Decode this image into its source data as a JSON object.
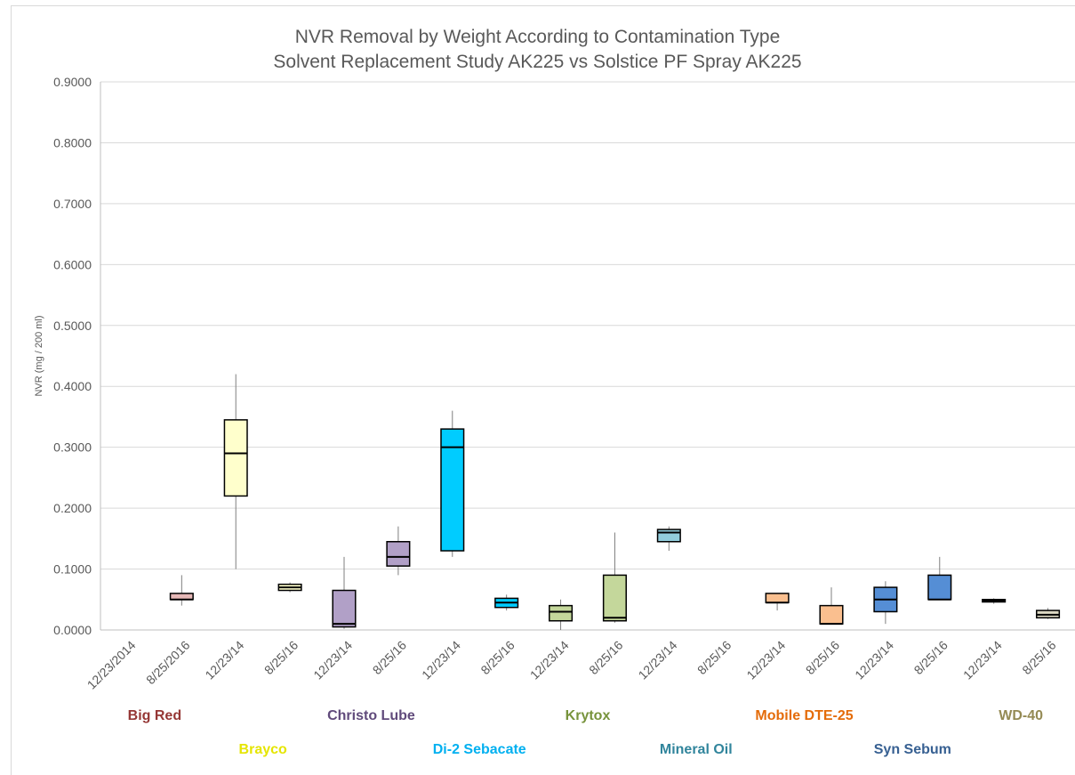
{
  "chart_data": {
    "type": "boxplot",
    "title": "NVR Removal by Weight According to Contamination Type",
    "subtitle": "Solvent Replacement Study AK225 vs Solstice PF Spray AK225",
    "ylabel": "NVR (mg / 200 ml)",
    "xlabel": "",
    "ylim": [
      0,
      0.9
    ],
    "y_ticks": [
      "0.0000",
      "0.1000",
      "0.2000",
      "0.3000",
      "0.4000",
      "0.5000",
      "0.6000",
      "0.7000",
      "0.8000",
      "0.9000"
    ],
    "grid": "horizontal",
    "categories": [
      "12/23/2014",
      "8/25/2016",
      "12/23/14",
      "8/25/16",
      "12/23/14",
      "8/25/16",
      "12/23/14",
      "8/25/16",
      "12/23/14",
      "8/25/16",
      "12/23/14",
      "8/25/16",
      "12/23/14",
      "8/25/16",
      "12/23/14",
      "8/25/16",
      "12/23/14",
      "8/25/16"
    ],
    "boxes": [
      null,
      {
        "min": 0.04,
        "q1": 0.05,
        "median": 0.05,
        "q3": 0.06,
        "max": 0.09,
        "color": "#e6b8b7"
      },
      {
        "min": 0.1,
        "q1": 0.22,
        "median": 0.29,
        "q3": 0.345,
        "max": 0.42,
        "color": "#ffffcc"
      },
      {
        "min": 0.062,
        "q1": 0.065,
        "median": 0.07,
        "q3": 0.075,
        "max": 0.078,
        "color": "#ffffcc"
      },
      {
        "min": 0.002,
        "q1": 0.005,
        "median": 0.01,
        "q3": 0.065,
        "max": 0.12,
        "color": "#b1a0c7"
      },
      {
        "min": 0.09,
        "q1": 0.105,
        "median": 0.12,
        "q3": 0.145,
        "max": 0.17,
        "color": "#b1a0c7"
      },
      {
        "min": 0.12,
        "q1": 0.13,
        "median": 0.3,
        "q3": 0.33,
        "max": 0.36,
        "color": "#00ccff"
      },
      {
        "min": 0.032,
        "q1": 0.037,
        "median": 0.045,
        "q3": 0.052,
        "max": 0.058,
        "color": "#00ccff"
      },
      {
        "min": 0.0,
        "q1": 0.015,
        "median": 0.03,
        "q3": 0.04,
        "max": 0.05,
        "color": "#c4d79b"
      },
      {
        "min": 0.012,
        "q1": 0.015,
        "median": 0.02,
        "q3": 0.09,
        "max": 0.16,
        "color": "#c4d79b"
      },
      {
        "min": 0.13,
        "q1": 0.145,
        "median": 0.16,
        "q3": 0.165,
        "max": 0.17,
        "color": "#92cddc"
      },
      null,
      {
        "min": 0.032,
        "q1": 0.045,
        "median": 0.045,
        "q3": 0.06,
        "max": 0.06,
        "color": "#fabf8f"
      },
      {
        "min": 0.01,
        "q1": 0.01,
        "median": 0.01,
        "q3": 0.04,
        "max": 0.07,
        "color": "#fabf8f"
      },
      {
        "min": 0.01,
        "q1": 0.03,
        "median": 0.05,
        "q3": 0.07,
        "max": 0.08,
        "color": "#558ed5"
      },
      {
        "min": 0.05,
        "q1": 0.05,
        "median": 0.05,
        "q3": 0.09,
        "max": 0.12,
        "color": "#558ed5"
      },
      {
        "min": 0.043,
        "q1": 0.046,
        "median": 0.048,
        "q3": 0.05,
        "max": 0.052,
        "color": "#ddd9c4"
      },
      {
        "min": 0.018,
        "q1": 0.02,
        "median": 0.025,
        "q3": 0.032,
        "max": 0.036,
        "color": "#ddd9c4"
      }
    ],
    "groups": [
      {
        "label": "Big Red",
        "color": "#953735",
        "row": 1,
        "center_index": 0.5
      },
      {
        "label": "Brayco",
        "color": "#e5e500",
        "row": 2,
        "center_index": 2.5
      },
      {
        "label": "Christo Lube",
        "color": "#604a7b",
        "row": 1,
        "center_index": 4.5
      },
      {
        "label": "Di-2 Sebacate",
        "color": "#00b0f0",
        "row": 2,
        "center_index": 6.5
      },
      {
        "label": "Krytox",
        "color": "#77933c",
        "row": 1,
        "center_index": 8.5
      },
      {
        "label": "Mineral Oil",
        "color": "#31859c",
        "row": 2,
        "center_index": 10.5
      },
      {
        "label": "Mobile DTE-25",
        "color": "#e46c0a",
        "row": 1,
        "center_index": 12.5
      },
      {
        "label": "Syn Sebum",
        "color": "#376092",
        "row": 2,
        "center_index": 14.5
      },
      {
        "label": "WD-40",
        "color": "#948a54",
        "row": 1,
        "center_index": 16.5
      }
    ]
  }
}
